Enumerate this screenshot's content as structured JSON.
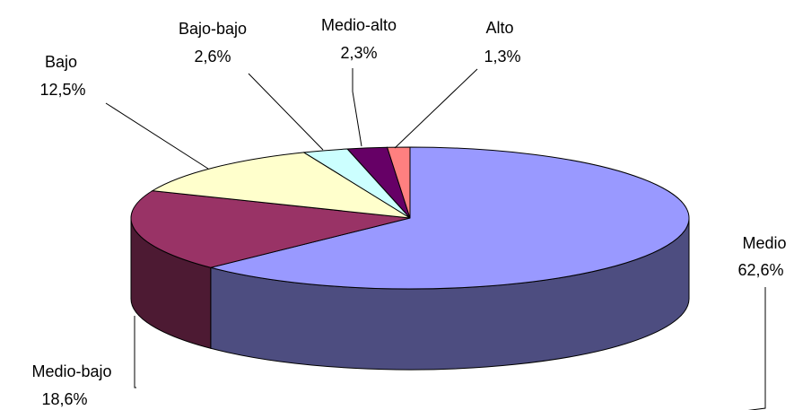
{
  "chart_data": {
    "type": "pie",
    "categories": [
      "Medio",
      "Medio-bajo",
      "Bajo",
      "Bajo-bajo",
      "Medio-alto",
      "Alto"
    ],
    "values": [
      62.6,
      18.6,
      12.5,
      2.6,
      2.3,
      1.3
    ],
    "value_labels": [
      "62,6%",
      "18,6%",
      "12,5%",
      "2,6%",
      "2,3%",
      "1,3%"
    ],
    "colors": [
      "#9999ff",
      "#993366",
      "#ffffcc",
      "#ccffff",
      "#660066",
      "#ff8080"
    ]
  }
}
